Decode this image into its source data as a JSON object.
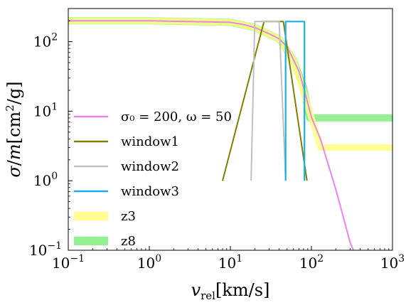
{
  "chart_data": {
    "type": "line",
    "xlabel": "v_rel[km/s]",
    "ylabel": "σ/m[cm²/g]",
    "xscale": "log",
    "yscale": "log",
    "xlim": [
      0.1,
      1000
    ],
    "ylim": [
      0.1,
      300
    ],
    "grid": false,
    "legend_position": "center-left",
    "x_ticks": [
      {
        "value": 0.1,
        "base": "10",
        "exp": "−1"
      },
      {
        "value": 1,
        "base": "10",
        "exp": "0"
      },
      {
        "value": 10,
        "base": "10",
        "exp": "1"
      },
      {
        "value": 100,
        "base": "10",
        "exp": "2"
      },
      {
        "value": 1000,
        "base": "10",
        "exp": "3"
      }
    ],
    "y_ticks": [
      {
        "value": 0.1,
        "base": "10",
        "exp": "−1"
      },
      {
        "value": 1,
        "base": "10",
        "exp": "0"
      },
      {
        "value": 10,
        "base": "10",
        "exp": "1"
      },
      {
        "value": 100,
        "base": "10",
        "exp": "2"
      }
    ],
    "series": [
      {
        "name": "σ₀ = 200, ω = 50",
        "kind": "line",
        "color": "#ee82ee",
        "points": [
          [
            0.1,
            200
          ],
          [
            1,
            199.7
          ],
          [
            5,
            193
          ],
          [
            10,
            190
          ],
          [
            15,
            175
          ],
          [
            20,
            160
          ],
          [
            30,
            130
          ],
          [
            40,
            110
          ],
          [
            50,
            85
          ],
          [
            60,
            55
          ],
          [
            70,
            38
          ],
          [
            80,
            22
          ],
          [
            100,
            8.2
          ],
          [
            130,
            3.9
          ],
          [
            200,
            0.75
          ],
          [
            300,
            0.13
          ],
          [
            330,
            0.1
          ]
        ]
      },
      {
        "name": "window1",
        "kind": "line",
        "color": "#808000",
        "points": [
          [
            8,
            1.0
          ],
          [
            26,
            195
          ],
          [
            38,
            195
          ],
          [
            45,
            195
          ],
          [
            88,
            1.0
          ]
        ]
      },
      {
        "name": "window2",
        "kind": "line",
        "color": "#c0c0c0",
        "points": [
          [
            18,
            1.0
          ],
          [
            20,
            195
          ],
          [
            40,
            195
          ],
          [
            48,
            1.0
          ]
        ]
      },
      {
        "name": "window3",
        "kind": "line",
        "color": "#1ab2e6",
        "points": [
          [
            48,
            1.0
          ],
          [
            48,
            195
          ],
          [
            82,
            195
          ],
          [
            82,
            1.0
          ]
        ]
      },
      {
        "name": "z3",
        "kind": "band",
        "color": "#ffff80",
        "points": [
          [
            0.1,
            200
          ],
          [
            1,
            199.7
          ],
          [
            10,
            190
          ],
          [
            20,
            160
          ],
          [
            40,
            110
          ],
          [
            60,
            55
          ],
          [
            90,
            12
          ],
          [
            130,
            3.0
          ],
          [
            1000,
            3.0
          ]
        ]
      },
      {
        "name": "z8",
        "kind": "band",
        "color": "#80ee80",
        "points": [
          [
            0.1,
            200
          ],
          [
            1,
            199.7
          ],
          [
            10,
            190
          ],
          [
            20,
            160
          ],
          [
            40,
            110
          ],
          [
            60,
            55
          ],
          [
            80,
            22
          ],
          [
            95,
            8.0
          ],
          [
            1000,
            8.0
          ]
        ]
      }
    ]
  }
}
